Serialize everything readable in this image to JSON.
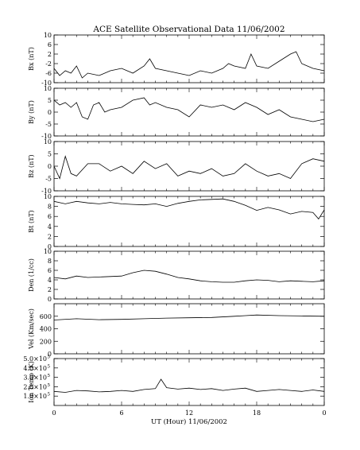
{
  "chart_data": {
    "type": "line",
    "title": "ACE Satellite Observational Data   11/06/2002",
    "xlabel": "UT (Hour)   11/06/2002",
    "x_ticks": [
      "0",
      "6",
      "12",
      "18",
      "0"
    ],
    "xlim": [
      0,
      24
    ],
    "grid": false,
    "legend": "none",
    "panels": [
      {
        "name": "bx",
        "ylabel": "Bx (nT)",
        "ylim": [
          -10,
          10
        ],
        "y_ticks": [
          {
            "v": 10,
            "label": "10"
          },
          {
            "v": 6,
            "label": "6"
          },
          {
            "v": 2,
            "label": "2"
          },
          {
            "v": -2,
            "label": "-2"
          },
          {
            "v": -6,
            "label": "-6"
          },
          {
            "v": -10,
            "label": "-10"
          }
        ],
        "series": [
          {
            "x": [
              0,
              0.5,
              1,
              1.5,
              2,
              2.5,
              3,
              4,
              5,
              6,
              7,
              8,
              8.5,
              9,
              10,
              11,
              12,
              13,
              14,
              15,
              15.5,
              16,
              17,
              17.5,
              18,
              19,
              20,
              21,
              21.5,
              22,
              23,
              24
            ],
            "values": [
              -4,
              -7,
              -5,
              -6,
              -3,
              -8,
              -6,
              -7,
              -5,
              -4,
              -6,
              -3,
              0,
              -4,
              -5,
              -6,
              -7,
              -5,
              -6,
              -4,
              -2,
              -3,
              -4,
              2,
              -3,
              -4,
              -1,
              2,
              3,
              -2,
              -4,
              -5
            ]
          }
        ]
      },
      {
        "name": "by",
        "ylabel": "By (nT)",
        "ylim": [
          -10,
          10
        ],
        "y_ticks": [
          {
            "v": 10,
            "label": "10"
          },
          {
            "v": 5,
            "label": "5"
          },
          {
            "v": 0,
            "label": "0"
          },
          {
            "v": -5,
            "label": "-5"
          },
          {
            "v": -10,
            "label": "-10"
          }
        ],
        "series": [
          {
            "x": [
              0,
              0.5,
              1,
              1.5,
              2,
              2.5,
              3,
              3.5,
              4,
              4.5,
              5,
              6,
              7,
              8,
              8.5,
              9,
              10,
              11,
              12,
              13,
              14,
              15,
              16,
              17,
              18,
              19,
              20,
              21,
              22,
              23,
              24
            ],
            "values": [
              5,
              3,
              4,
              2,
              4,
              -2,
              -3,
              3,
              4,
              0,
              1,
              2,
              5,
              6,
              3,
              4,
              2,
              1,
              -2,
              3,
              2,
              3,
              1,
              4,
              2,
              -1,
              1,
              -2,
              -3,
              -4,
              -3
            ]
          }
        ]
      },
      {
        "name": "bz",
        "ylabel": "Bz (nT)",
        "ylim": [
          -10,
          10
        ],
        "y_ticks": [
          {
            "v": 10,
            "label": "10"
          },
          {
            "v": 5,
            "label": "5"
          },
          {
            "v": 0,
            "label": "0"
          },
          {
            "v": -5,
            "label": "-5"
          },
          {
            "v": -10,
            "label": "-10"
          }
        ],
        "series": [
          {
            "x": [
              0,
              0.5,
              1,
              1.5,
              2,
              3,
              4,
              5,
              6,
              7,
              8,
              9,
              10,
              11,
              12,
              13,
              14,
              15,
              16,
              17,
              18,
              19,
              20,
              21,
              22,
              23,
              24
            ],
            "values": [
              0,
              -5,
              4,
              -3,
              -4,
              1,
              1,
              -2,
              0,
              -3,
              2,
              -1,
              1,
              -4,
              -2,
              -3,
              -1,
              -4,
              -3,
              1,
              -2,
              -4,
              -3,
              -5,
              1,
              3,
              2
            ]
          }
        ]
      },
      {
        "name": "bt",
        "ylabel": "Bt (nT)",
        "ylim": [
          0,
          10
        ],
        "y_ticks": [
          {
            "v": 10,
            "label": "10"
          },
          {
            "v": 8,
            "label": "8"
          },
          {
            "v": 6,
            "label": "6"
          },
          {
            "v": 4,
            "label": "4"
          },
          {
            "v": 2,
            "label": "2"
          },
          {
            "v": 0,
            "label": "0"
          }
        ],
        "series": [
          {
            "x": [
              0,
              1,
              2,
              3,
              4,
              5,
              6,
              7,
              8,
              9,
              10,
              11,
              12,
              13,
              14,
              15,
              16,
              17,
              18,
              19,
              20,
              21,
              22,
              23,
              23.5,
              24
            ],
            "values": [
              9,
              8.5,
              9,
              8.7,
              8.5,
              8.8,
              8.5,
              8.4,
              8.3,
              8.5,
              8,
              8.6,
              9,
              9.3,
              9.4,
              9.5,
              9,
              8.2,
              7.2,
              7.8,
              7.3,
              6.5,
              7,
              6.8,
              5.5,
              7.3
            ]
          }
        ]
      },
      {
        "name": "den",
        "ylabel": "Den (1/cc)",
        "ylim": [
          0,
          10
        ],
        "y_ticks": [
          {
            "v": 10,
            "label": "10"
          },
          {
            "v": 8,
            "label": "8"
          },
          {
            "v": 6,
            "label": "6"
          },
          {
            "v": 4,
            "label": "4"
          },
          {
            "v": 2,
            "label": "2"
          },
          {
            "v": 0,
            "label": "0"
          }
        ],
        "series": [
          {
            "x": [
              0,
              1,
              2,
              3,
              4,
              5,
              6,
              7,
              8,
              9,
              10,
              11,
              12,
              13,
              14,
              15,
              16,
              17,
              18,
              19,
              20,
              21,
              22,
              23,
              24
            ],
            "values": [
              4.5,
              4.2,
              4.8,
              4.5,
              4.6,
              4.7,
              4.8,
              5.5,
              6,
              5.8,
              5.2,
              4.5,
              4.2,
              3.8,
              3.6,
              3.5,
              3.5,
              3.8,
              4,
              3.9,
              3.6,
              3.8,
              3.7,
              3.6,
              3.8
            ]
          }
        ]
      },
      {
        "name": "vel",
        "ylabel": "Vel (Km/sec)",
        "ylim": [
          0,
          800
        ],
        "y_ticks": [
          {
            "v": 600,
            "label": "600"
          },
          {
            "v": 400,
            "label": "400"
          },
          {
            "v": 200,
            "label": "200"
          },
          {
            "v": 0,
            "label": "0"
          }
        ],
        "series": [
          {
            "x": [
              0,
              2,
              4,
              6,
              8,
              10,
              12,
              14,
              16,
              17,
              18,
              20,
              22,
              24
            ],
            "values": [
              540,
              560,
              545,
              550,
              560,
              570,
              575,
              580,
              600,
              610,
              620,
              610,
              605,
              600
            ]
          }
        ]
      },
      {
        "name": "temp",
        "ylabel": "Ion Temp (K)",
        "ylim": [
          0,
          500000
        ],
        "y_ticks": [
          {
            "v": 500000,
            "label": "5.0×10",
            "exp": "5"
          },
          {
            "v": 400000,
            "label": "4.0×10",
            "exp": "5"
          },
          {
            "v": 300000,
            "label": "3.0×10",
            "exp": "5"
          },
          {
            "v": 200000,
            "label": "2.0×10",
            "exp": "5"
          },
          {
            "v": 100000,
            "label": "1.0×10",
            "exp": "5"
          }
        ],
        "series": [
          {
            "x": [
              0,
              1,
              2,
              3,
              4,
              5,
              6,
              7,
              8,
              9,
              9.5,
              10,
              11,
              12,
              13,
              14,
              15,
              16,
              17,
              18,
              19,
              20,
              21,
              22,
              23,
              24
            ],
            "values": [
              150000,
              140000,
              160000,
              155000,
              145000,
              150000,
              160000,
              150000,
              170000,
              180000,
              280000,
              190000,
              175000,
              185000,
              170000,
              180000,
              160000,
              175000,
              185000,
              150000,
              160000,
              170000,
              160000,
              150000,
              165000,
              150000
            ]
          }
        ]
      }
    ]
  }
}
